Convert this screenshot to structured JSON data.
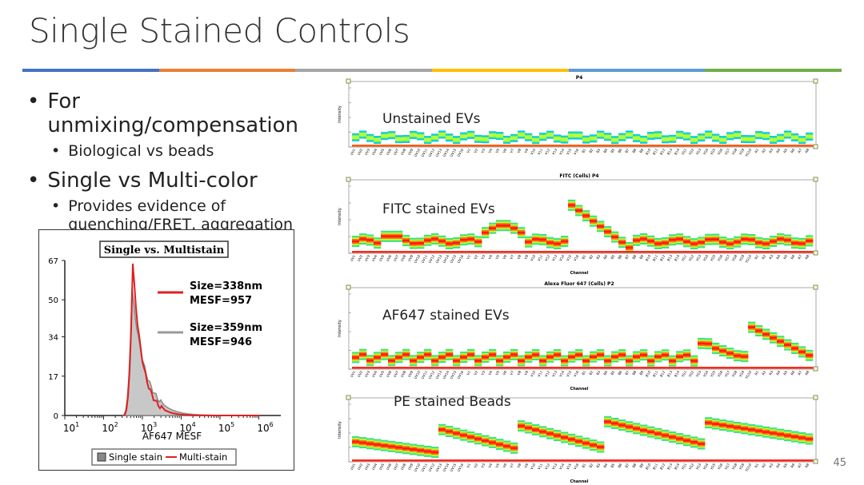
{
  "slide": {
    "title": "Single Stained Controls",
    "page_number": "45",
    "rule_colors": [
      "#4472c4",
      "#ed7d31",
      "#a5a5a5",
      "#ffc000",
      "#5b9bd5",
      "#70ad47"
    ]
  },
  "bullets": [
    {
      "text": "For unmixing/compensation",
      "sub": [
        "Biological vs beads"
      ]
    },
    {
      "text": "Single vs Multi-color",
      "sub": [
        "Provides evidence of quenching/FRET, aggregation"
      ]
    }
  ],
  "histogram": {
    "title": "Single vs. Multistain",
    "xlabel": "AF647 MESF",
    "x_ticks": [
      "10",
      "10",
      "10",
      "10",
      "10",
      "10"
    ],
    "x_tick_exps": [
      "1",
      "2",
      "3",
      "4",
      "5",
      "6"
    ],
    "y_ticks": [
      "0",
      "17",
      "34",
      "50",
      "67"
    ],
    "annotations": [
      {
        "size": "Size=338nm",
        "mesf": "MESF=957"
      },
      {
        "size": "Size=359nm",
        "mesf": "MESF=946"
      }
    ],
    "legend": [
      "Single stain",
      "Multi-stain"
    ],
    "colors": {
      "single": "#999999",
      "multi": "#e02020"
    }
  },
  "panels": [
    {
      "title": "P4",
      "label": "Unstained EVs",
      "ylabel": "Intensity",
      "xlabel": "",
      "pattern": "flat"
    },
    {
      "title": "FITC (Cells) P4",
      "label": "FITC stained EVs",
      "ylabel": "Intensity",
      "xlabel": "Channel",
      "pattern": "fitc"
    },
    {
      "title": "Alexa Fluor 647 (Cells) P2",
      "label": "AF647 stained EVs",
      "ylabel": "Intensity",
      "xlabel": "Channel",
      "pattern": "af647"
    },
    {
      "title": "",
      "label": "PE stained Beads",
      "ylabel": "Intensity",
      "xlabel": "Channel",
      "pattern": "pe"
    }
  ]
}
